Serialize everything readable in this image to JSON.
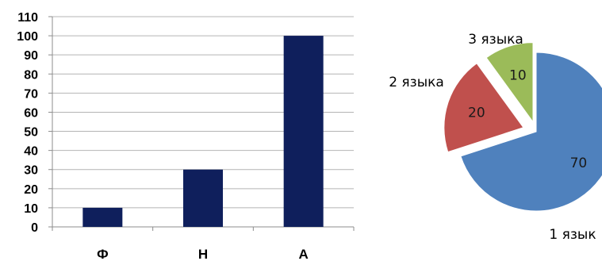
{
  "chart_data": [
    {
      "type": "bar",
      "categories": [
        "Ф",
        "Н",
        "А"
      ],
      "values": [
        10,
        30,
        100
      ],
      "ylim": [
        0,
        110
      ],
      "yticks": [
        0,
        10,
        20,
        30,
        40,
        50,
        60,
        70,
        80,
        90,
        100,
        110
      ],
      "grid": true,
      "title": "",
      "xlabel": "",
      "ylabel": "",
      "bar_color": "#0f1f5c",
      "grid_color": "#b4b4b4"
    },
    {
      "type": "pie",
      "slices": [
        {
          "label": "1 язык",
          "value": 70,
          "color": "#4f81bd",
          "exploded": false
        },
        {
          "label": "2 языка",
          "value": 20,
          "color": "#c0504d",
          "exploded": true
        },
        {
          "label": "3 языка",
          "value": 10,
          "color": "#9bbb59",
          "exploded": true
        }
      ],
      "start_angle_deg": 0,
      "direction": "clockwise"
    }
  ]
}
